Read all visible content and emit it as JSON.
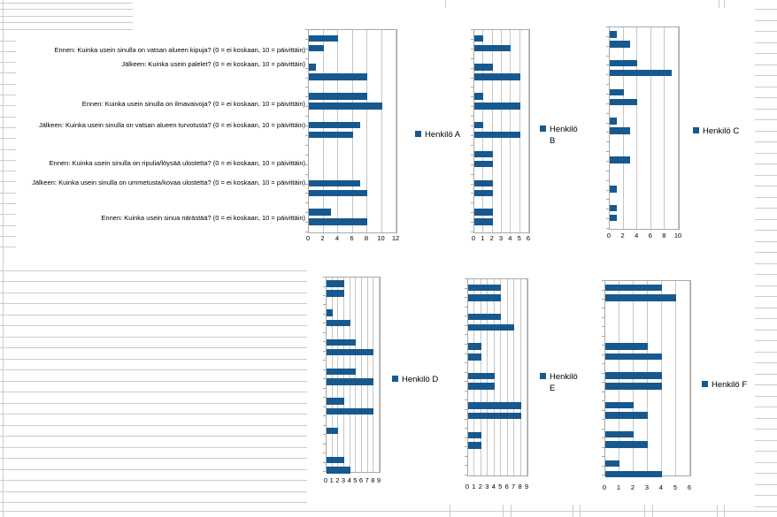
{
  "app": {
    "description": "Spreadsheet sheet with six embedded horizontal bar charts"
  },
  "colors": {
    "bar_fill": "#17598E",
    "legend_marker": "#17598E",
    "sheet_grid": "#cccccc",
    "plot_border": "#a8a8a8"
  },
  "sheet": {
    "row_labels": [
      "Ennen: Kuinka usein sinulla on vatsan alueen kipuja? (0 = ei koskaan, 10 = päivittäin)",
      "Jälkeen: Kuinka usein palelet? (0 = ei koskaan, 10 = päivittäin)",
      "Ennen: Kuinka usein sinulla on ilmavaivoja? (0 = ei koskaan, 10 = päivittäin)",
      "Jälkeen: Kuinka usein sinulla on vatsan alueen turvotusta? (0 = ei koskaan, 10 = päivittäin)",
      "Ennen: Kuinka usein sinulla on ripulia/löysää ulostetta? (0 = ei koskaan, 10 = päivittäin)",
      "Jälkeen: Kuinka usein sinulla on ummetusta/kovaa ulostetta? (0 = ei koskaan, 10 = päivittäin)",
      "Ennen: Kuinka usein sinua närästää? (0 = ei koskaan, 10 = päivittäin)"
    ]
  },
  "chart_data": {
    "type": "bar",
    "orientation": "horizontal",
    "bars_per_category_group": 2,
    "shared_categories": [
      "Ennen: Kuinka usein sinulla on vatsan alueen kipuja? (0 = ei koskaan, 10 = päivittäin)",
      "Jälkeen: Kuinka usein palelet? (0 = ei koskaan, 10 = päivittäin)",
      "Ennen: Kuinka usein sinulla on ilmavaivoja? (0 = ei koskaan, 10 = päivittäin)",
      "Jälkeen: Kuinka usein sinulla on vatsan alueen turvotusta? (0 = ei koskaan, 10 = päivittäin)",
      "Ennen: Kuinka usein sinulla on ripulia/löysää ulostetta? (0 = ei koskaan, 10 = päivittäin)",
      "Jälkeen: Kuinka usein sinulla on ummetusta/kovaa ulostetta? (0 = ei koskaan, 10 = päivittäin)",
      "Ennen: Kuinka usein sinua närästää? (0 = ei koskaan, 10 = päivittäin)"
    ],
    "legend_position": "right",
    "charts": [
      {
        "legend": "Henkilö A",
        "legend_lines": [
          "Henkilö A"
        ],
        "xlim": [
          0,
          12
        ],
        "tick_labels": [
          "0",
          "2",
          "4",
          "6",
          "8",
          "10",
          "12"
        ],
        "groups": [
          [
            4,
            2
          ],
          [
            1,
            8
          ],
          [
            8,
            10
          ],
          [
            7,
            6
          ],
          [
            0,
            0
          ],
          [
            7,
            8
          ],
          [
            3,
            8
          ]
        ]
      },
      {
        "legend": "Henkilö B",
        "legend_lines": [
          "Henkilö",
          "B"
        ],
        "xlim": [
          0,
          6
        ],
        "tick_labels": [
          "0",
          "1",
          "2",
          "3",
          "4",
          "5",
          "6"
        ],
        "groups": [
          [
            1,
            4
          ],
          [
            2,
            5
          ],
          [
            1,
            5
          ],
          [
            1,
            5
          ],
          [
            2,
            2
          ],
          [
            2,
            2
          ],
          [
            2,
            2
          ]
        ]
      },
      {
        "legend": "Henkilö C",
        "legend_lines": [
          "Henkilö C"
        ],
        "xlim": [
          0,
          10
        ],
        "tick_labels": [
          "0",
          "2",
          "4",
          "6",
          "8",
          "10"
        ],
        "groups": [
          [
            1,
            3
          ],
          [
            4,
            9
          ],
          [
            2,
            4
          ],
          [
            1,
            3
          ],
          [
            0,
            3
          ],
          [
            0,
            1
          ],
          [
            1,
            1
          ]
        ]
      },
      {
        "legend": "Henkilö D",
        "legend_lines": [
          "Henkilö D"
        ],
        "xlim": [
          0,
          9
        ],
        "tick_labels": [
          "0",
          "1",
          "2",
          "3",
          "4",
          "5",
          "6",
          "7",
          "8",
          "9"
        ],
        "groups": [
          [
            3,
            3
          ],
          [
            1,
            4
          ],
          [
            5,
            8
          ],
          [
            5,
            8
          ],
          [
            3,
            8
          ],
          [
            2,
            0
          ],
          [
            3,
            4
          ]
        ]
      },
      {
        "legend": "Henkilö E",
        "legend_lines": [
          "Henkilö",
          "E"
        ],
        "xlim": [
          0,
          9
        ],
        "tick_labels": [
          "0",
          "1",
          "2",
          "3",
          "4",
          "5",
          "6",
          "7",
          "8",
          "9"
        ],
        "groups": [
          [
            5,
            5
          ],
          [
            5,
            7
          ],
          [
            2,
            2
          ],
          [
            4,
            4
          ],
          [
            8,
            8
          ],
          [
            2,
            2
          ],
          [
            0,
            0
          ]
        ]
      },
      {
        "legend": "Henkilö F",
        "legend_lines": [
          "Henkilö F"
        ],
        "xlim": [
          0,
          6
        ],
        "tick_labels": [
          "0",
          "1",
          "2",
          "3",
          "4",
          "5",
          "6"
        ],
        "groups": [
          [
            4,
            5
          ],
          [
            0,
            0
          ],
          [
            3,
            4
          ],
          [
            4,
            4
          ],
          [
            2,
            3
          ],
          [
            2,
            3
          ],
          [
            1,
            4
          ]
        ]
      }
    ]
  }
}
